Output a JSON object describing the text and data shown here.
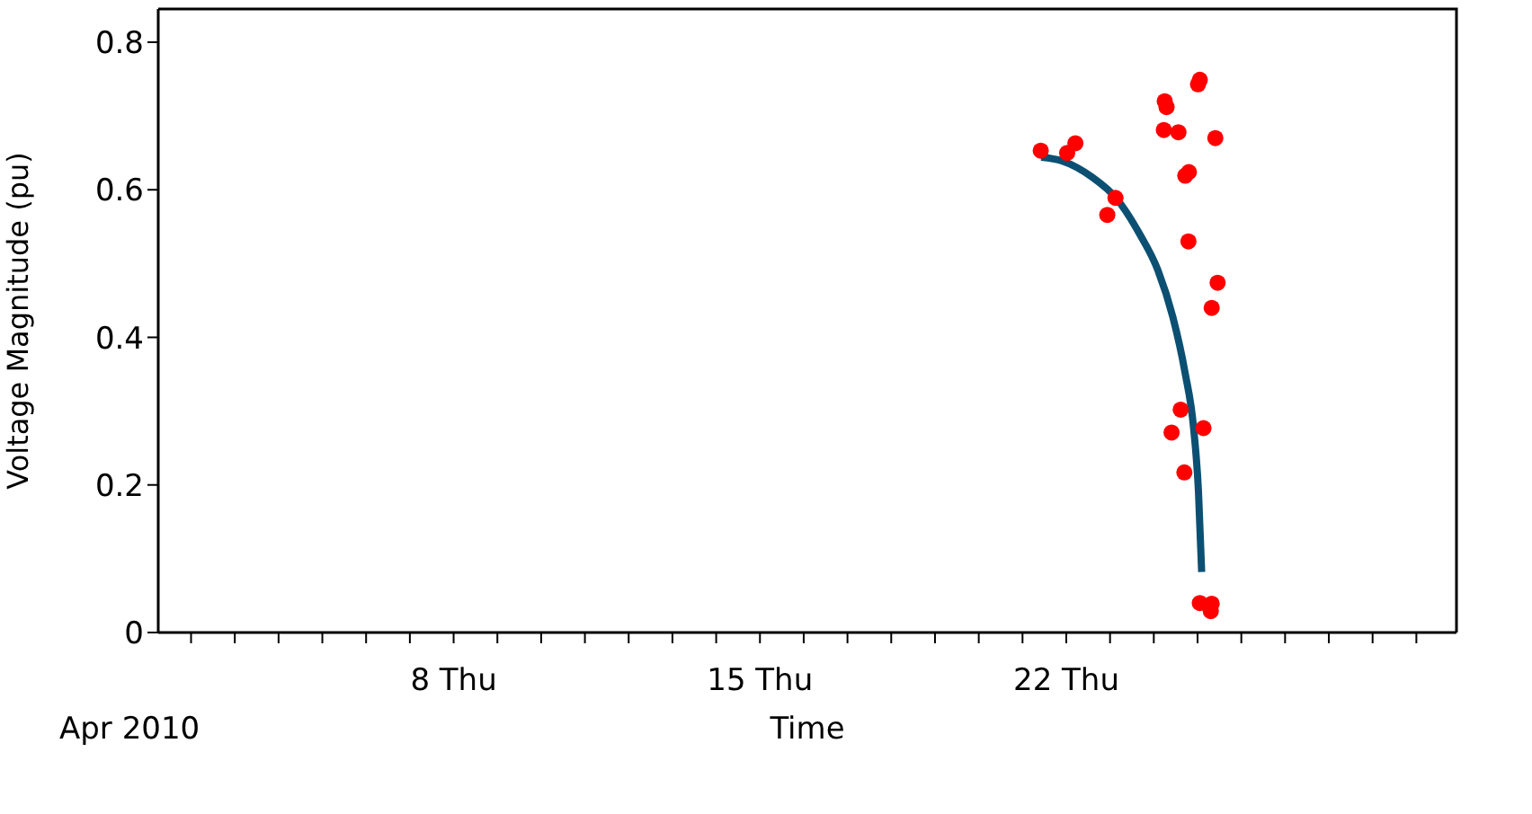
{
  "chart_data": {
    "type": "scatter",
    "xlabel": "Time",
    "ylabel": "Voltage Magnitude (pu)",
    "annotations": [
      "Apr 2010"
    ],
    "xlim": [
      "2010-04-01T06:00",
      "2010-04-30T22:00"
    ],
    "ylim": [
      0,
      0.845
    ],
    "yticks": [
      0,
      0.2,
      0.4,
      0.6,
      0.8
    ],
    "xticks": [
      {
        "value": "2010-04-02",
        "label": null
      },
      {
        "value": "2010-04-03",
        "label": null
      },
      {
        "value": "2010-04-04",
        "label": null
      },
      {
        "value": "2010-04-05",
        "label": null
      },
      {
        "value": "2010-04-06",
        "label": null
      },
      {
        "value": "2010-04-07",
        "label": null
      },
      {
        "value": "2010-04-08",
        "label": "8 Thu"
      },
      {
        "value": "2010-04-09",
        "label": null
      },
      {
        "value": "2010-04-10",
        "label": null
      },
      {
        "value": "2010-04-11",
        "label": null
      },
      {
        "value": "2010-04-12",
        "label": null
      },
      {
        "value": "2010-04-13",
        "label": null
      },
      {
        "value": "2010-04-14",
        "label": null
      },
      {
        "value": "2010-04-15",
        "label": "15 Thu"
      },
      {
        "value": "2010-04-16",
        "label": null
      },
      {
        "value": "2010-04-17",
        "label": null
      },
      {
        "value": "2010-04-18",
        "label": null
      },
      {
        "value": "2010-04-19",
        "label": null
      },
      {
        "value": "2010-04-20",
        "label": null
      },
      {
        "value": "2010-04-21",
        "label": null
      },
      {
        "value": "2010-04-22",
        "label": "22 Thu"
      },
      {
        "value": "2010-04-23",
        "label": null
      },
      {
        "value": "2010-04-24",
        "label": null
      },
      {
        "value": "2010-04-25",
        "label": null
      },
      {
        "value": "2010-04-26",
        "label": null
      },
      {
        "value": "2010-04-27",
        "label": null
      },
      {
        "value": "2010-04-28",
        "label": null
      },
      {
        "value": "2010-04-29",
        "label": null
      },
      {
        "value": "2010-04-30",
        "label": null
      }
    ],
    "series": [
      {
        "color": "#ff0000",
        "marker": "circle",
        "x": [
          "2010-04-21T10:00",
          "2010-04-22T00:30",
          "2010-04-22T05:00",
          "2010-04-23T03:00",
          "2010-04-22T22:30",
          "2010-04-24T06:00",
          "2010-04-24T07:00",
          "2010-04-24T05:30",
          "2010-04-24T13:30",
          "2010-04-25T00:15",
          "2010-04-25T01:15",
          "2010-04-25T09:45",
          "2010-04-24T17:15",
          "2010-04-24T19:15",
          "2010-04-24T19:00",
          "2010-04-25T11:00",
          "2010-04-25T07:45",
          "2010-04-24T14:45",
          "2010-04-24T09:45",
          "2010-04-25T03:15",
          "2010-04-24T16:45",
          "2010-04-25T01:15",
          "2010-04-25T07:15",
          "2010-04-25T07:45"
        ],
        "values": [
          0.653,
          0.65,
          0.663,
          0.589,
          0.566,
          0.72,
          0.712,
          0.681,
          0.678,
          0.743,
          0.749,
          0.67,
          0.619,
          0.624,
          0.53,
          0.474,
          0.44,
          0.302,
          0.271,
          0.277,
          0.217,
          0.04,
          0.029,
          0.039
        ]
      },
      {
        "type": "line",
        "color": "#0b5072",
        "x": [
          "2010-04-21T10:15",
          "2010-04-21T21:45",
          "2010-04-22T14:15",
          "2010-04-23T03:15",
          "2010-04-23T16:15",
          "2010-04-24T02:15",
          "2010-04-24T10:30",
          "2010-04-24T17:00",
          "2010-04-24T22:00",
          "2010-04-25T00:30",
          "2010-04-25T02:15"
        ],
        "values": [
          0.644,
          0.639,
          0.617,
          0.589,
          0.54,
          0.491,
          0.427,
          0.354,
          0.273,
          0.191,
          0.082
        ]
      }
    ]
  }
}
